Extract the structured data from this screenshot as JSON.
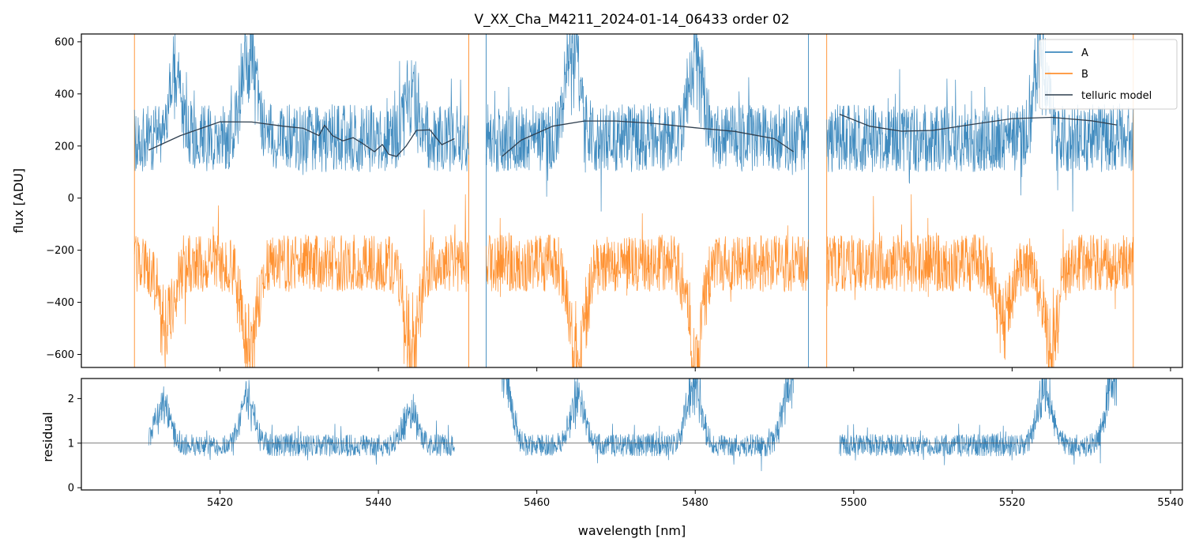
{
  "chart_data": [
    {
      "type": "line",
      "panel": "top",
      "title": "V_XX_Cha_M4211_2024-01-14_06433  order 02",
      "xlabel": "",
      "ylabel": "flux [ADU]",
      "xlim": [
        5402.5,
        5541.5
      ],
      "ylim": [
        -650,
        630
      ],
      "y_ticks": [
        -600,
        -400,
        -200,
        0,
        200,
        400,
        600
      ],
      "y_tick_labels": [
        "−600",
        "−400",
        "−200",
        "0",
        "200",
        "400",
        "600"
      ],
      "x_ticks": [
        5420,
        5440,
        5460,
        5480,
        5500,
        5520,
        5540
      ],
      "x_tick_labels": [],
      "x_segments": [
        [
          5409.2,
          5451.4
        ],
        [
          5453.6,
          5494.3
        ],
        [
          5496.6,
          5535.3
        ]
      ],
      "legend_location": "upper right",
      "series": [
        {
          "name": "A",
          "color": "#1f77b4",
          "baseline": 230,
          "noise_amplitude": 130,
          "spikes": [
            {
              "x": 5414.3,
              "amplitude": 220
            },
            {
              "x": 5423.6,
              "amplitude": 330
            },
            {
              "x": 5444.2,
              "amplitude": 160
            },
            {
              "x": 5464.5,
              "amplitude": 360
            },
            {
              "x": 5480.0,
              "amplitude": 300
            },
            {
              "x": 5523.6,
              "amplitude": 300
            }
          ]
        },
        {
          "name": "B",
          "color": "#ff7f0e",
          "baseline": -250,
          "noise_amplitude": 110,
          "spikes": [
            {
              "x": 5413.2,
              "amplitude": -250
            },
            {
              "x": 5423.6,
              "amplitude": -350
            },
            {
              "x": 5444.2,
              "amplitude": -320
            },
            {
              "x": 5465.2,
              "amplitude": -380
            },
            {
              "x": 5480.0,
              "amplitude": -330
            },
            {
              "x": 5519.0,
              "amplitude": -200
            },
            {
              "x": 5524.8,
              "amplitude": -320
            }
          ]
        },
        {
          "name": "telluric model",
          "color": "#2f3f4f",
          "segments": [
            {
              "x": [
                5411.0,
                5415,
                5420,
                5424,
                5428,
                5430.5,
                5432.5,
                5433.2,
                5434.2,
                5435.5,
                5436.8,
                5438,
                5439.5,
                5440.5,
                5441.3,
                5442.3,
                5443.5,
                5444.8,
                5446.5,
                5448,
                5449.6
              ],
              "y": [
                184,
                240,
                293,
                292,
                276,
                268,
                240,
                280,
                240,
                220,
                232,
                210,
                178,
                206,
                168,
                160,
                200,
                260,
                262,
                205,
                228
              ]
            },
            {
              "x": [
                5455.6,
                5458,
                5462,
                5466,
                5470,
                5475,
                5480,
                5485,
                5490,
                5492.4
              ],
              "y": [
                160,
                222,
                276,
                296,
                296,
                286,
                270,
                256,
                228,
                178
              ]
            },
            {
              "x": [
                5498.2,
                5502,
                5506,
                5510,
                5515,
                5520,
                5525,
                5530,
                5533.2
              ],
              "y": [
                322,
                276,
                257,
                260,
                283,
                305,
                310,
                297,
                281
              ]
            }
          ]
        }
      ]
    },
    {
      "type": "line",
      "panel": "bottom",
      "title": "",
      "xlabel": "wavelength [nm]",
      "ylabel": "residual",
      "xlim": [
        5402.5,
        5541.5
      ],
      "ylim": [
        -0.05,
        2.45
      ],
      "y_ticks": [
        0,
        1,
        2
      ],
      "y_tick_labels": [
        "0",
        "1",
        "2"
      ],
      "x_ticks": [
        5420,
        5440,
        5460,
        5480,
        5500,
        5520,
        5540
      ],
      "x_tick_labels": [
        "5420",
        "5440",
        "5460",
        "5480",
        "5500",
        "5520",
        "5540"
      ],
      "reference_line": 1,
      "x_segments": [
        [
          5411.0,
          5449.6
        ],
        [
          5455.6,
          5492.4
        ],
        [
          5498.2,
          5533.2
        ]
      ],
      "series": [
        {
          "color": "#1f77b4",
          "baseline": 0.95,
          "noise_amplitude": 0.25,
          "spikes": [
            {
              "x": 5412.8,
              "amplitude": 0.9
            },
            {
              "x": 5423.4,
              "amplitude": 1.0
            },
            {
              "x": 5444.0,
              "amplitude": 0.7
            },
            {
              "x": 5455.8,
              "amplitude": 1.5
            },
            {
              "x": 5465.2,
              "amplitude": 1.1
            },
            {
              "x": 5479.8,
              "amplitude": 1.4
            },
            {
              "x": 5492.0,
              "amplitude": 1.5
            },
            {
              "x": 5524.2,
              "amplitude": 1.3
            },
            {
              "x": 5532.8,
              "amplitude": 1.5
            }
          ]
        }
      ]
    }
  ]
}
